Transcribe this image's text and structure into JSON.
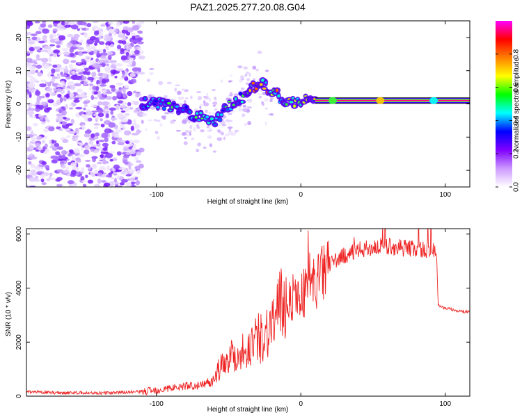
{
  "figure": {
    "title": "PAZ1.2025.277.20.08.G04"
  },
  "chart_data": [
    {
      "type": "heatmap",
      "title": "PAZ1.2025.277.20.08.G04",
      "xlabel": "Height of straight line (km)",
      "ylabel": "Frequency (Hz)",
      "xlim": [
        -190,
        117
      ],
      "ylim": [
        -25,
        25
      ],
      "xticks": [
        -100,
        0,
        100
      ],
      "yticks": [
        -20,
        -10,
        0,
        10,
        20
      ],
      "xtick_labels": [
        "-100",
        "0",
        "100"
      ],
      "ytick_labels": [
        "-20",
        "-10",
        "0",
        "10",
        "20"
      ],
      "colorbar": {
        "label": "Normalized spectral amplitude",
        "range": [
          0,
          1
        ],
        "ticks": [
          0.0,
          0.2,
          0.4,
          0.6,
          0.8
        ],
        "tick_labels": [
          "0.0",
          "0.2",
          "0.4",
          "0.6",
          "0.8"
        ],
        "colors": [
          "#ffffff",
          "#cc99ff",
          "#8000ff",
          "#0000ff",
          "#00ffff",
          "#00ff00",
          "#ffff00",
          "#ff8000",
          "#ff0000",
          "#ff00ff"
        ]
      },
      "dominant_frequency_track": {
        "x": [
          -110,
          -100,
          -90,
          -80,
          -75,
          -70,
          -65,
          -60,
          -55,
          -50,
          -45,
          -40,
          -35,
          -30,
          -25,
          -20,
          -15,
          -10,
          -5,
          0,
          5,
          10,
          20,
          40,
          60,
          80,
          100,
          117
        ],
        "y": [
          0,
          0.5,
          -1,
          -2,
          -3,
          -4,
          -4,
          -5,
          -3,
          -1,
          1,
          2,
          4,
          6,
          5.5,
          4,
          2,
          1,
          0.5,
          0.5,
          1,
          1,
          1,
          1,
          1,
          1,
          1,
          1
        ]
      }
    },
    {
      "type": "line",
      "xlabel": "Height of straight line (km)",
      "ylabel": "SNR (10 * v/v)",
      "xlim": [
        -190,
        117
      ],
      "ylim": [
        0,
        6200
      ],
      "xticks": [
        -100,
        0,
        100
      ],
      "yticks": [
        0,
        2000,
        4000,
        6000
      ],
      "xtick_labels": [
        "-100",
        "0",
        "100"
      ],
      "ytick_labels": [
        "0",
        "2000",
        "4000",
        "6000"
      ],
      "series": [
        {
          "name": "SNR",
          "color": "#ee2222",
          "x": [
            -190,
            -170,
            -150,
            -130,
            -110,
            -100,
            -90,
            -80,
            -70,
            -65,
            -60,
            -55,
            -50,
            -45,
            -40,
            -35,
            -30,
            -25,
            -20,
            -15,
            -10,
            -5,
            0,
            5,
            10,
            15,
            20,
            30,
            40,
            50,
            60,
            70,
            80,
            90,
            94,
            95,
            97,
            100,
            105,
            110,
            117
          ],
          "y": [
            150,
            130,
            120,
            120,
            170,
            230,
            300,
            380,
            380,
            500,
            700,
            1100,
            1500,
            1500,
            1650,
            1900,
            2100,
            2300,
            2700,
            3200,
            3500,
            3700,
            3700,
            4000,
            4200,
            4500,
            4900,
            5200,
            5400,
            5500,
            5550,
            5500,
            5450,
            5400,
            5350,
            3400,
            3300,
            3250,
            3200,
            3150,
            3100
          ]
        }
      ]
    }
  ]
}
